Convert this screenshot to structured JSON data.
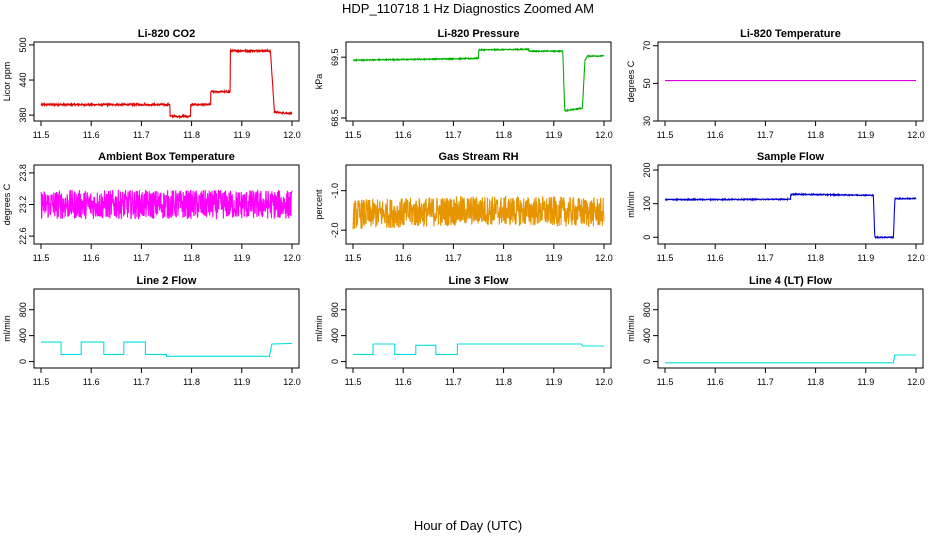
{
  "figure": {
    "title": "HDP_110718  1 Hz Diagnostics Zoomed AM",
    "xlabel": "Hour of Day (UTC)"
  },
  "chart_data": [
    {
      "type": "line",
      "title": "Li-820 CO2",
      "ylabel": "Licor ppm",
      "xlim": [
        11.5,
        12.0
      ],
      "ylim": [
        370,
        505
      ],
      "yticks": [
        "380",
        "440",
        "500"
      ],
      "ytick_values": [
        380,
        440,
        500
      ],
      "xticks": [
        "11.5",
        "11.6",
        "11.7",
        "11.8",
        "11.9",
        "12.0"
      ],
      "color": "#e00000",
      "noise": 1.5,
      "series": [
        {
          "x": [
            11.5,
            11.757,
            11.757,
            11.798,
            11.798,
            11.838,
            11.838,
            11.877,
            11.877,
            11.957,
            11.965,
            12.0
          ],
          "y": [
            398,
            398,
            378,
            378,
            398,
            398,
            420,
            420,
            490,
            490,
            385,
            383
          ]
        }
      ]
    },
    {
      "type": "line",
      "title": "Li-820 Pressure",
      "ylabel": "kPa",
      "xlim": [
        11.5,
        12.0
      ],
      "ylim": [
        68.45,
        69.75
      ],
      "yticks": [
        "68.5",
        "69.5"
      ],
      "ytick_values": [
        68.5,
        69.5
      ],
      "xticks": [
        "11.5",
        "11.6",
        "11.7",
        "11.8",
        "11.9",
        "12.0"
      ],
      "color": "#00b000",
      "noise": 0.008,
      "series": [
        {
          "x": [
            11.5,
            11.75,
            11.75,
            11.85,
            11.85,
            11.918,
            11.922,
            11.922,
            11.957,
            11.962,
            11.967,
            12.0
          ],
          "y": [
            69.45,
            69.48,
            69.62,
            69.63,
            69.6,
            69.6,
            68.55,
            68.62,
            68.66,
            69.45,
            69.52,
            69.52
          ]
        }
      ]
    },
    {
      "type": "line",
      "title": "Li-820 Temperature",
      "ylabel": "degrees C",
      "xlim": [
        11.5,
        12.0
      ],
      "ylim": [
        30,
        72
      ],
      "yticks": [
        "30",
        "50",
        "70"
      ],
      "ytick_values": [
        30,
        50,
        70
      ],
      "xticks": [
        "11.5",
        "11.6",
        "11.7",
        "11.8",
        "11.9",
        "12.0"
      ],
      "color": "#e000e0",
      "noise": 0,
      "series": [
        {
          "x": [
            11.5,
            12.0
          ],
          "y": [
            51.5,
            51.5
          ]
        }
      ]
    },
    {
      "type": "line",
      "title": "Ambient Box Temperature",
      "ylabel": "degrees C",
      "xlim": [
        11.5,
        12.0
      ],
      "ylim": [
        22.45,
        23.95
      ],
      "yticks": [
        "22.6",
        "23.2",
        "23.8"
      ],
      "ytick_values": [
        22.6,
        23.2,
        23.8
      ],
      "xticks": [
        "11.5",
        "11.6",
        "11.7",
        "11.8",
        "11.9",
        "12.0"
      ],
      "color": "#ff00ff",
      "noise": 0.28,
      "series": [
        {
          "x": [
            11.5,
            12.0
          ],
          "y": [
            23.2,
            23.2
          ]
        }
      ]
    },
    {
      "type": "line",
      "title": "Gas Stream RH",
      "ylabel": "percent",
      "xlim": [
        11.5,
        12.0
      ],
      "ylim": [
        -2.35,
        -0.35
      ],
      "yticks": [
        "-2.0",
        "-1.0"
      ],
      "ytick_values": [
        -2.0,
        -1.0
      ],
      "xticks": [
        "11.5",
        "11.6",
        "11.7",
        "11.8",
        "11.9",
        "12.0"
      ],
      "color": "#e69500",
      "noise": 0.38,
      "series": [
        {
          "x": [
            11.5,
            11.75,
            12.0
          ],
          "y": [
            -1.6,
            -1.5,
            -1.55
          ]
        }
      ]
    },
    {
      "type": "line",
      "title": "Sample Flow",
      "ylabel": "ml/min",
      "xlim": [
        11.5,
        12.0
      ],
      "ylim": [
        -20,
        215
      ],
      "yticks": [
        "0",
        "100",
        "200"
      ],
      "ytick_values": [
        0,
        100,
        200
      ],
      "xticks": [
        "11.5",
        "11.6",
        "11.7",
        "11.8",
        "11.9",
        "12.0"
      ],
      "color": "#0000d0",
      "noise": 1.5,
      "series": [
        {
          "x": [
            11.5,
            11.75,
            11.75,
            11.915,
            11.918,
            11.955,
            11.958,
            12.0
          ],
          "y": [
            112,
            113,
            128,
            125,
            0,
            0,
            115,
            115
          ]
        }
      ]
    },
    {
      "type": "line",
      "title": "Line 2 Flow",
      "ylabel": "ml/min",
      "xlim": [
        11.5,
        12.0
      ],
      "ylim": [
        -100,
        1120
      ],
      "yticks": [
        "0",
        "400",
        "800"
      ],
      "ytick_values": [
        0,
        400,
        800
      ],
      "xticks": [
        "11.5",
        "11.6",
        "11.7",
        "11.8",
        "11.9",
        "12.0"
      ],
      "color": "#00e0e0",
      "noise": 0,
      "series": [
        {
          "x": [
            11.5,
            11.54,
            11.54,
            11.58,
            11.58,
            11.625,
            11.625,
            11.665,
            11.665,
            11.708,
            11.708,
            11.75,
            11.75,
            11.955,
            11.96,
            12.0
          ],
          "y": [
            300,
            300,
            110,
            110,
            300,
            300,
            110,
            110,
            300,
            300,
            110,
            110,
            80,
            80,
            270,
            280
          ]
        }
      ]
    },
    {
      "type": "line",
      "title": "Line 3 Flow",
      "ylabel": "ml/min",
      "xlim": [
        11.5,
        12.0
      ],
      "ylim": [
        -100,
        1120
      ],
      "yticks": [
        "0",
        "400",
        "800"
      ],
      "ytick_values": [
        0,
        400,
        800
      ],
      "xticks": [
        "11.5",
        "11.6",
        "11.7",
        "11.8",
        "11.9",
        "12.0"
      ],
      "color": "#00e0e0",
      "noise": 0,
      "series": [
        {
          "x": [
            11.5,
            11.54,
            11.54,
            11.583,
            11.583,
            11.625,
            11.625,
            11.665,
            11.665,
            11.708,
            11.708,
            11.955,
            11.958,
            12.0
          ],
          "y": [
            110,
            110,
            270,
            270,
            110,
            110,
            250,
            250,
            110,
            110,
            270,
            270,
            240,
            240
          ]
        }
      ]
    },
    {
      "type": "line",
      "title": "Line 4 (LT) Flow",
      "ylabel": "ml/min",
      "xlim": [
        11.5,
        12.0
      ],
      "ylim": [
        -100,
        1120
      ],
      "yticks": [
        "0",
        "400",
        "800"
      ],
      "ytick_values": [
        0,
        400,
        800
      ],
      "xticks": [
        "11.5",
        "11.6",
        "11.7",
        "11.8",
        "11.9",
        "12.0"
      ],
      "color": "#00e0e0",
      "noise": 0,
      "series": [
        {
          "x": [
            11.5,
            11.955,
            11.958,
            12.0
          ],
          "y": [
            -20,
            -20,
            100,
            100
          ]
        }
      ]
    }
  ]
}
